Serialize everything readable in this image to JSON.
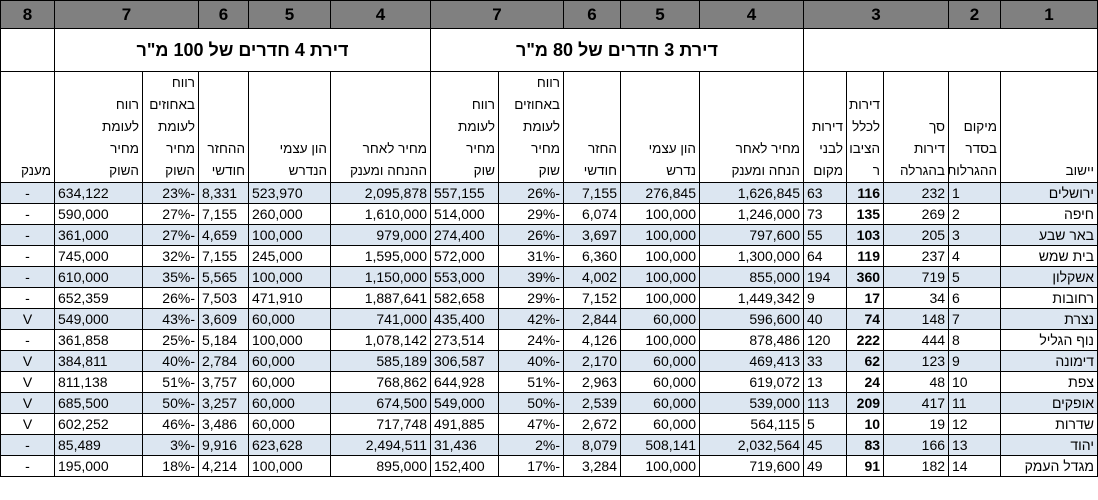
{
  "column_numbers": [
    "1",
    "2",
    "3",
    "4",
    "5",
    "6",
    "7",
    "4",
    "5",
    "6",
    "7",
    "8"
  ],
  "groups": {
    "apt3": "דירת 3 חדרים של 80 מ\"ר",
    "apt4": "דירת 4 חדרים של 100 מ\"ר"
  },
  "headers": {
    "city": [
      "יישוב"
    ],
    "rank": [
      "מיקום",
      "בסדר",
      "ההגרלות"
    ],
    "total": [
      "סך",
      "דירות",
      "בהגרלה"
    ],
    "public": [
      "דירות",
      "לכלל",
      "הציבו",
      "ר"
    ],
    "locals": [
      "דירות",
      "לבני",
      "מקום"
    ],
    "apt3_price": [
      "מחיר לאחר",
      "הנחה ומענק"
    ],
    "apt3_equity": [
      "הון עצמי",
      "נדרש"
    ],
    "apt3_monthly": [
      "החזר",
      "חודשי"
    ],
    "apt3_pct": [
      "רווח",
      "באחוזים",
      "לעומת",
      "מחיר",
      "שוק"
    ],
    "apt3_profit": [
      "רווח",
      "לעומת",
      "מחיר",
      "שוק"
    ],
    "apt4_price": [
      "מחיר לאחר",
      "ההנחה ומענק"
    ],
    "apt4_equity": [
      "הון עצמי",
      "הנדרש"
    ],
    "apt4_monthly": [
      "ההחזר",
      "חודשי"
    ],
    "apt4_pct": [
      "רווח",
      "באחוזים",
      "לעומת",
      "מחיר",
      "השוק"
    ],
    "apt4_profit": [
      "רווח",
      "לעומת",
      "מחיר",
      "השוק"
    ],
    "grant": [
      "מענק"
    ]
  },
  "rows": [
    {
      "city": "ירושלים",
      "rank": "1",
      "total": "232",
      "public": "116",
      "locals": "63",
      "a3_price": "1,626,845",
      "a3_equity": "276,845",
      "a3_monthly": "7,155",
      "a3_pct": "-26%",
      "a3_profit": "557,155",
      "a4_price": "2,095,878",
      "a4_equity": "523,970",
      "a4_monthly": "8,331",
      "a4_pct": "-23%",
      "a4_profit": "634,122",
      "grant": "-"
    },
    {
      "city": "חיפה",
      "rank": "2",
      "total": "269",
      "public": "135",
      "locals": "73",
      "a3_price": "1,246,000",
      "a3_equity": "100,000",
      "a3_monthly": "6,074",
      "a3_pct": "-29%",
      "a3_profit": "514,000",
      "a4_price": "1,610,000",
      "a4_equity": "260,000",
      "a4_monthly": "7,155",
      "a4_pct": "-27%",
      "a4_profit": "590,000",
      "grant": "-"
    },
    {
      "city": "באר שבע",
      "rank": "3",
      "total": "205",
      "public": "103",
      "locals": "55",
      "a3_price": "797,600",
      "a3_equity": "100,000",
      "a3_monthly": "3,697",
      "a3_pct": "-26%",
      "a3_profit": "274,400",
      "a4_price": "979,000",
      "a4_equity": "100,000",
      "a4_monthly": "4,659",
      "a4_pct": "-27%",
      "a4_profit": "361,000",
      "grant": "-"
    },
    {
      "city": "בית שמש",
      "rank": "4",
      "total": "237",
      "public": "119",
      "locals": "64",
      "a3_price": "1,300,000",
      "a3_equity": "100,000",
      "a3_monthly": "6,360",
      "a3_pct": "-31%",
      "a3_profit": "572,000",
      "a4_price": "1,595,000",
      "a4_equity": "245,000",
      "a4_monthly": "7,155",
      "a4_pct": "-32%",
      "a4_profit": "745,000",
      "grant": "-"
    },
    {
      "city": "אשקלון",
      "rank": "5",
      "total": "719",
      "public": "360",
      "locals": "194",
      "a3_price": "855,000",
      "a3_equity": "100,000",
      "a3_monthly": "4,002",
      "a3_pct": "-39%",
      "a3_profit": "553,000",
      "a4_price": "1,150,000",
      "a4_equity": "100,000",
      "a4_monthly": "5,565",
      "a4_pct": "-35%",
      "a4_profit": "610,000",
      "grant": "-"
    },
    {
      "city": "רחובות",
      "rank": "6",
      "total": "34",
      "public": "17",
      "locals": "9",
      "a3_price": "1,449,342",
      "a3_equity": "100,000",
      "a3_monthly": "7,152",
      "a3_pct": "-29%",
      "a3_profit": "582,658",
      "a4_price": "1,887,641",
      "a4_equity": "471,910",
      "a4_monthly": "7,503",
      "a4_pct": "-26%",
      "a4_profit": "652,359",
      "grant": "-"
    },
    {
      "city": "נצרת",
      "rank": "7",
      "total": "148",
      "public": "74",
      "locals": "40",
      "a3_price": "596,600",
      "a3_equity": "60,000",
      "a3_monthly": "2,844",
      "a3_pct": "-42%",
      "a3_profit": "435,400",
      "a4_price": "741,000",
      "a4_equity": "60,000",
      "a4_monthly": "3,609",
      "a4_pct": "-43%",
      "a4_profit": "549,000",
      "grant": "V"
    },
    {
      "city": "נוף הגליל",
      "rank": "8",
      "total": "444",
      "public": "222",
      "locals": "120",
      "a3_price": "878,486",
      "a3_equity": "100,000",
      "a3_monthly": "4,126",
      "a3_pct": "-24%",
      "a3_profit": "273,514",
      "a4_price": "1,078,142",
      "a4_equity": "100,000",
      "a4_monthly": "5,184",
      "a4_pct": "-25%",
      "a4_profit": "361,858",
      "grant": "-"
    },
    {
      "city": "דימונה",
      "rank": "9",
      "total": "123",
      "public": "62",
      "locals": "33",
      "a3_price": "469,413",
      "a3_equity": "60,000",
      "a3_monthly": "2,170",
      "a3_pct": "-40%",
      "a3_profit": "306,587",
      "a4_price": "585,189",
      "a4_equity": "60,000",
      "a4_monthly": "2,784",
      "a4_pct": "-40%",
      "a4_profit": "384,811",
      "grant": "V"
    },
    {
      "city": "צפת",
      "rank": "10",
      "total": "48",
      "public": "24",
      "locals": "13",
      "a3_price": "619,072",
      "a3_equity": "60,000",
      "a3_monthly": "2,963",
      "a3_pct": "-51%",
      "a3_profit": "644,928",
      "a4_price": "768,862",
      "a4_equity": "60,000",
      "a4_monthly": "3,757",
      "a4_pct": "-51%",
      "a4_profit": "811,138",
      "grant": "V"
    },
    {
      "city": "אופקים",
      "rank": "11",
      "total": "417",
      "public": "209",
      "locals": "113",
      "a3_price": "539,000",
      "a3_equity": "60,000",
      "a3_monthly": "2,539",
      "a3_pct": "-50%",
      "a3_profit": "549,000",
      "a4_price": "674,500",
      "a4_equity": "60,000",
      "a4_monthly": "3,257",
      "a4_pct": "-50%",
      "a4_profit": "685,500",
      "grant": "V"
    },
    {
      "city": "שדרות",
      "rank": "12",
      "total": "19",
      "public": "10",
      "locals": "5",
      "a3_price": "564,115",
      "a3_equity": "60,000",
      "a3_monthly": "2,672",
      "a3_pct": "-47%",
      "a3_profit": "491,885",
      "a4_price": "717,748",
      "a4_equity": "60,000",
      "a4_monthly": "3,486",
      "a4_pct": "-46%",
      "a4_profit": "602,252",
      "grant": "V"
    },
    {
      "city": "יהוד",
      "rank": "13",
      "total": "166",
      "public": "83",
      "locals": "45",
      "a3_price": "2,032,564",
      "a3_equity": "508,141",
      "a3_monthly": "8,079",
      "a3_pct": "-2%",
      "a3_profit": "31,436",
      "a4_price": "2,494,511",
      "a4_equity": "623,628",
      "a4_monthly": "9,916",
      "a4_pct": "-3%",
      "a4_profit": "85,489",
      "grant": "-"
    },
    {
      "city": "מגדל העמק",
      "rank": "14",
      "total": "182",
      "public": "91",
      "locals": "49",
      "a3_price": "719,600",
      "a3_equity": "100,000",
      "a3_monthly": "3,284",
      "a3_pct": "-17%",
      "a3_profit": "152,400",
      "a4_price": "895,000",
      "a4_equity": "100,000",
      "a4_monthly": "4,214",
      "a4_pct": "-18%",
      "a4_profit": "195,000",
      "grant": "-"
    }
  ]
}
